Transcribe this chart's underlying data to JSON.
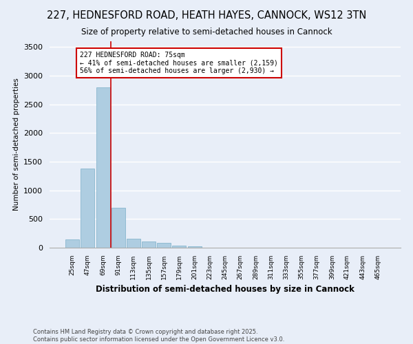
{
  "title_line1": "227, HEDNESFORD ROAD, HEATH HAYES, CANNOCK, WS12 3TN",
  "title_line2": "Size of property relative to semi-detached houses in Cannock",
  "xlabel": "Distribution of semi-detached houses by size in Cannock",
  "ylabel": "Number of semi-detached properties",
  "footer_line1": "Contains HM Land Registry data © Crown copyright and database right 2025.",
  "footer_line2": "Contains public sector information licensed under the Open Government Licence v3.0.",
  "annotation_title": "227 HEDNESFORD ROAD: 75sqm",
  "annotation_line2": "← 41% of semi-detached houses are smaller (2,159)",
  "annotation_line3": "56% of semi-detached houses are larger (2,930) →",
  "bar_color": "#aecde1",
  "bar_edge_color": "#7aaec8",
  "background_color": "#e8eef8",
  "grid_color": "#ffffff",
  "annotation_box_color": "#ffffff",
  "annotation_box_edge": "#cc0000",
  "vline_color": "#cc0000",
  "categories": [
    "25sqm",
    "47sqm",
    "69sqm",
    "91sqm",
    "113sqm",
    "135sqm",
    "157sqm",
    "179sqm",
    "201sqm",
    "223sqm",
    "245sqm",
    "267sqm",
    "289sqm",
    "311sqm",
    "333sqm",
    "355sqm",
    "377sqm",
    "399sqm",
    "421sqm",
    "443sqm",
    "465sqm"
  ],
  "values": [
    150,
    1380,
    2800,
    700,
    160,
    110,
    80,
    40,
    20,
    5,
    3,
    2,
    1,
    1,
    0,
    0,
    0,
    0,
    0,
    0,
    0
  ],
  "ylim": [
    0,
    3600
  ],
  "vline_x": 2.5
}
